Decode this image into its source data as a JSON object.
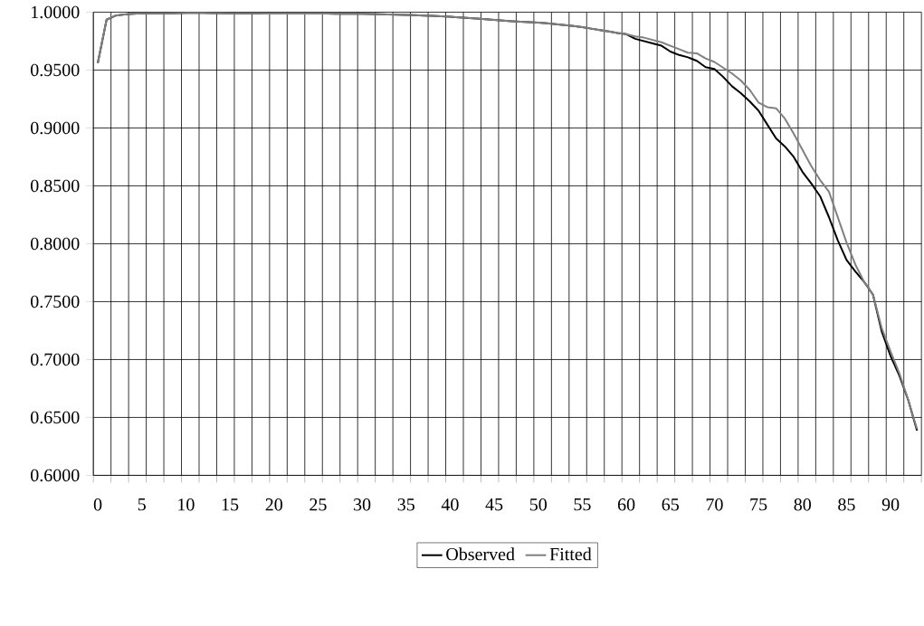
{
  "chart_data": {
    "type": "line",
    "categories": [
      "0",
      null,
      null,
      null,
      null,
      "5",
      null,
      null,
      null,
      null,
      "10",
      null,
      null,
      null,
      null,
      "15",
      null,
      null,
      null,
      null,
      "20",
      null,
      null,
      null,
      null,
      "25",
      null,
      null,
      null,
      null,
      "30",
      null,
      null,
      null,
      null,
      "35",
      null,
      null,
      null,
      null,
      "40",
      null,
      null,
      null,
      null,
      "45",
      null,
      null,
      null,
      null,
      "50",
      null,
      null,
      null,
      null,
      "55",
      null,
      null,
      null,
      null,
      "60",
      null,
      null,
      null,
      null,
      "65",
      null,
      null,
      null,
      null,
      "70",
      null,
      null,
      null,
      null,
      "75",
      null,
      null,
      null,
      null,
      "80",
      null,
      null,
      null,
      null,
      "85",
      null,
      null,
      null,
      null,
      "90",
      null,
      null,
      null
    ],
    "series": [
      {
        "name": "Observed",
        "color": "#000000",
        "values": [
          0.956,
          0.9935,
          0.997,
          0.998,
          0.9985,
          0.999,
          0.999,
          0.999,
          0.999,
          0.9992,
          0.9993,
          0.9993,
          0.9993,
          0.9992,
          0.9991,
          0.999,
          0.999,
          0.999,
          0.9989,
          0.9988,
          0.9988,
          0.9988,
          0.9988,
          0.9988,
          0.9987,
          0.9987,
          0.9987,
          0.9986,
          0.9986,
          0.9986,
          0.9985,
          0.9984,
          0.9982,
          0.998,
          0.9978,
          0.9976,
          0.9974,
          0.9971,
          0.9968,
          0.9964,
          0.996,
          0.9955,
          0.995,
          0.9945,
          0.994,
          0.9933,
          0.9927,
          0.9922,
          0.9917,
          0.9913,
          0.991,
          0.9903,
          0.9896,
          0.9889,
          0.988,
          0.987,
          0.9858,
          0.9845,
          0.9833,
          0.982,
          0.981,
          0.977,
          0.975,
          0.973,
          0.971,
          0.966,
          0.963,
          0.961,
          0.958,
          0.9525,
          0.951,
          0.944,
          0.936,
          0.93,
          0.923,
          0.915,
          0.903,
          0.891,
          0.884,
          0.875,
          0.862,
          0.852,
          0.841,
          0.823,
          0.803,
          0.786,
          0.776,
          0.767,
          0.756,
          0.724,
          0.703,
          0.686,
          0.665,
          0.6386
        ]
      },
      {
        "name": "Fitted",
        "color": "#808080",
        "values": [
          0.956,
          0.9935,
          0.997,
          0.998,
          0.9985,
          0.999,
          0.999,
          0.999,
          0.999,
          0.9992,
          0.9993,
          0.9993,
          0.9993,
          0.9992,
          0.9991,
          0.999,
          0.999,
          0.999,
          0.9989,
          0.9988,
          0.9988,
          0.9988,
          0.9988,
          0.9988,
          0.9987,
          0.9987,
          0.9987,
          0.9986,
          0.9986,
          0.9986,
          0.9985,
          0.9984,
          0.9982,
          0.998,
          0.9978,
          0.9976,
          0.9974,
          0.9971,
          0.9968,
          0.9964,
          0.996,
          0.9955,
          0.995,
          0.9945,
          0.994,
          0.9933,
          0.9927,
          0.9922,
          0.9917,
          0.9913,
          0.991,
          0.9903,
          0.9896,
          0.9889,
          0.988,
          0.987,
          0.9858,
          0.9845,
          0.9833,
          0.982,
          0.981,
          0.979,
          0.978,
          0.976,
          0.974,
          0.971,
          0.968,
          0.965,
          0.9645,
          0.96,
          0.957,
          0.952,
          0.947,
          0.941,
          0.933,
          0.922,
          0.918,
          0.917,
          0.908,
          0.895,
          0.881,
          0.867,
          0.855,
          0.845,
          0.823,
          0.801,
          0.782,
          0.767,
          0.756,
          0.727,
          0.707,
          0.688,
          0.665,
          0.64
        ]
      }
    ],
    "ylim": [
      0.6,
      1.0
    ],
    "yticks": [
      {
        "value": 0.6,
        "label": "0.6000"
      },
      {
        "value": 0.65,
        "label": "0.6500"
      },
      {
        "value": 0.7,
        "label": "0.7000"
      },
      {
        "value": 0.75,
        "label": "0.7500"
      },
      {
        "value": 0.8,
        "label": "0.8000"
      },
      {
        "value": 0.85,
        "label": "0.8500"
      },
      {
        "value": 0.9,
        "label": "0.9000"
      },
      {
        "value": 0.95,
        "label": "0.9500"
      },
      {
        "value": 1.0,
        "label": "1.0000"
      }
    ],
    "grid": true,
    "legend": "bottom"
  }
}
